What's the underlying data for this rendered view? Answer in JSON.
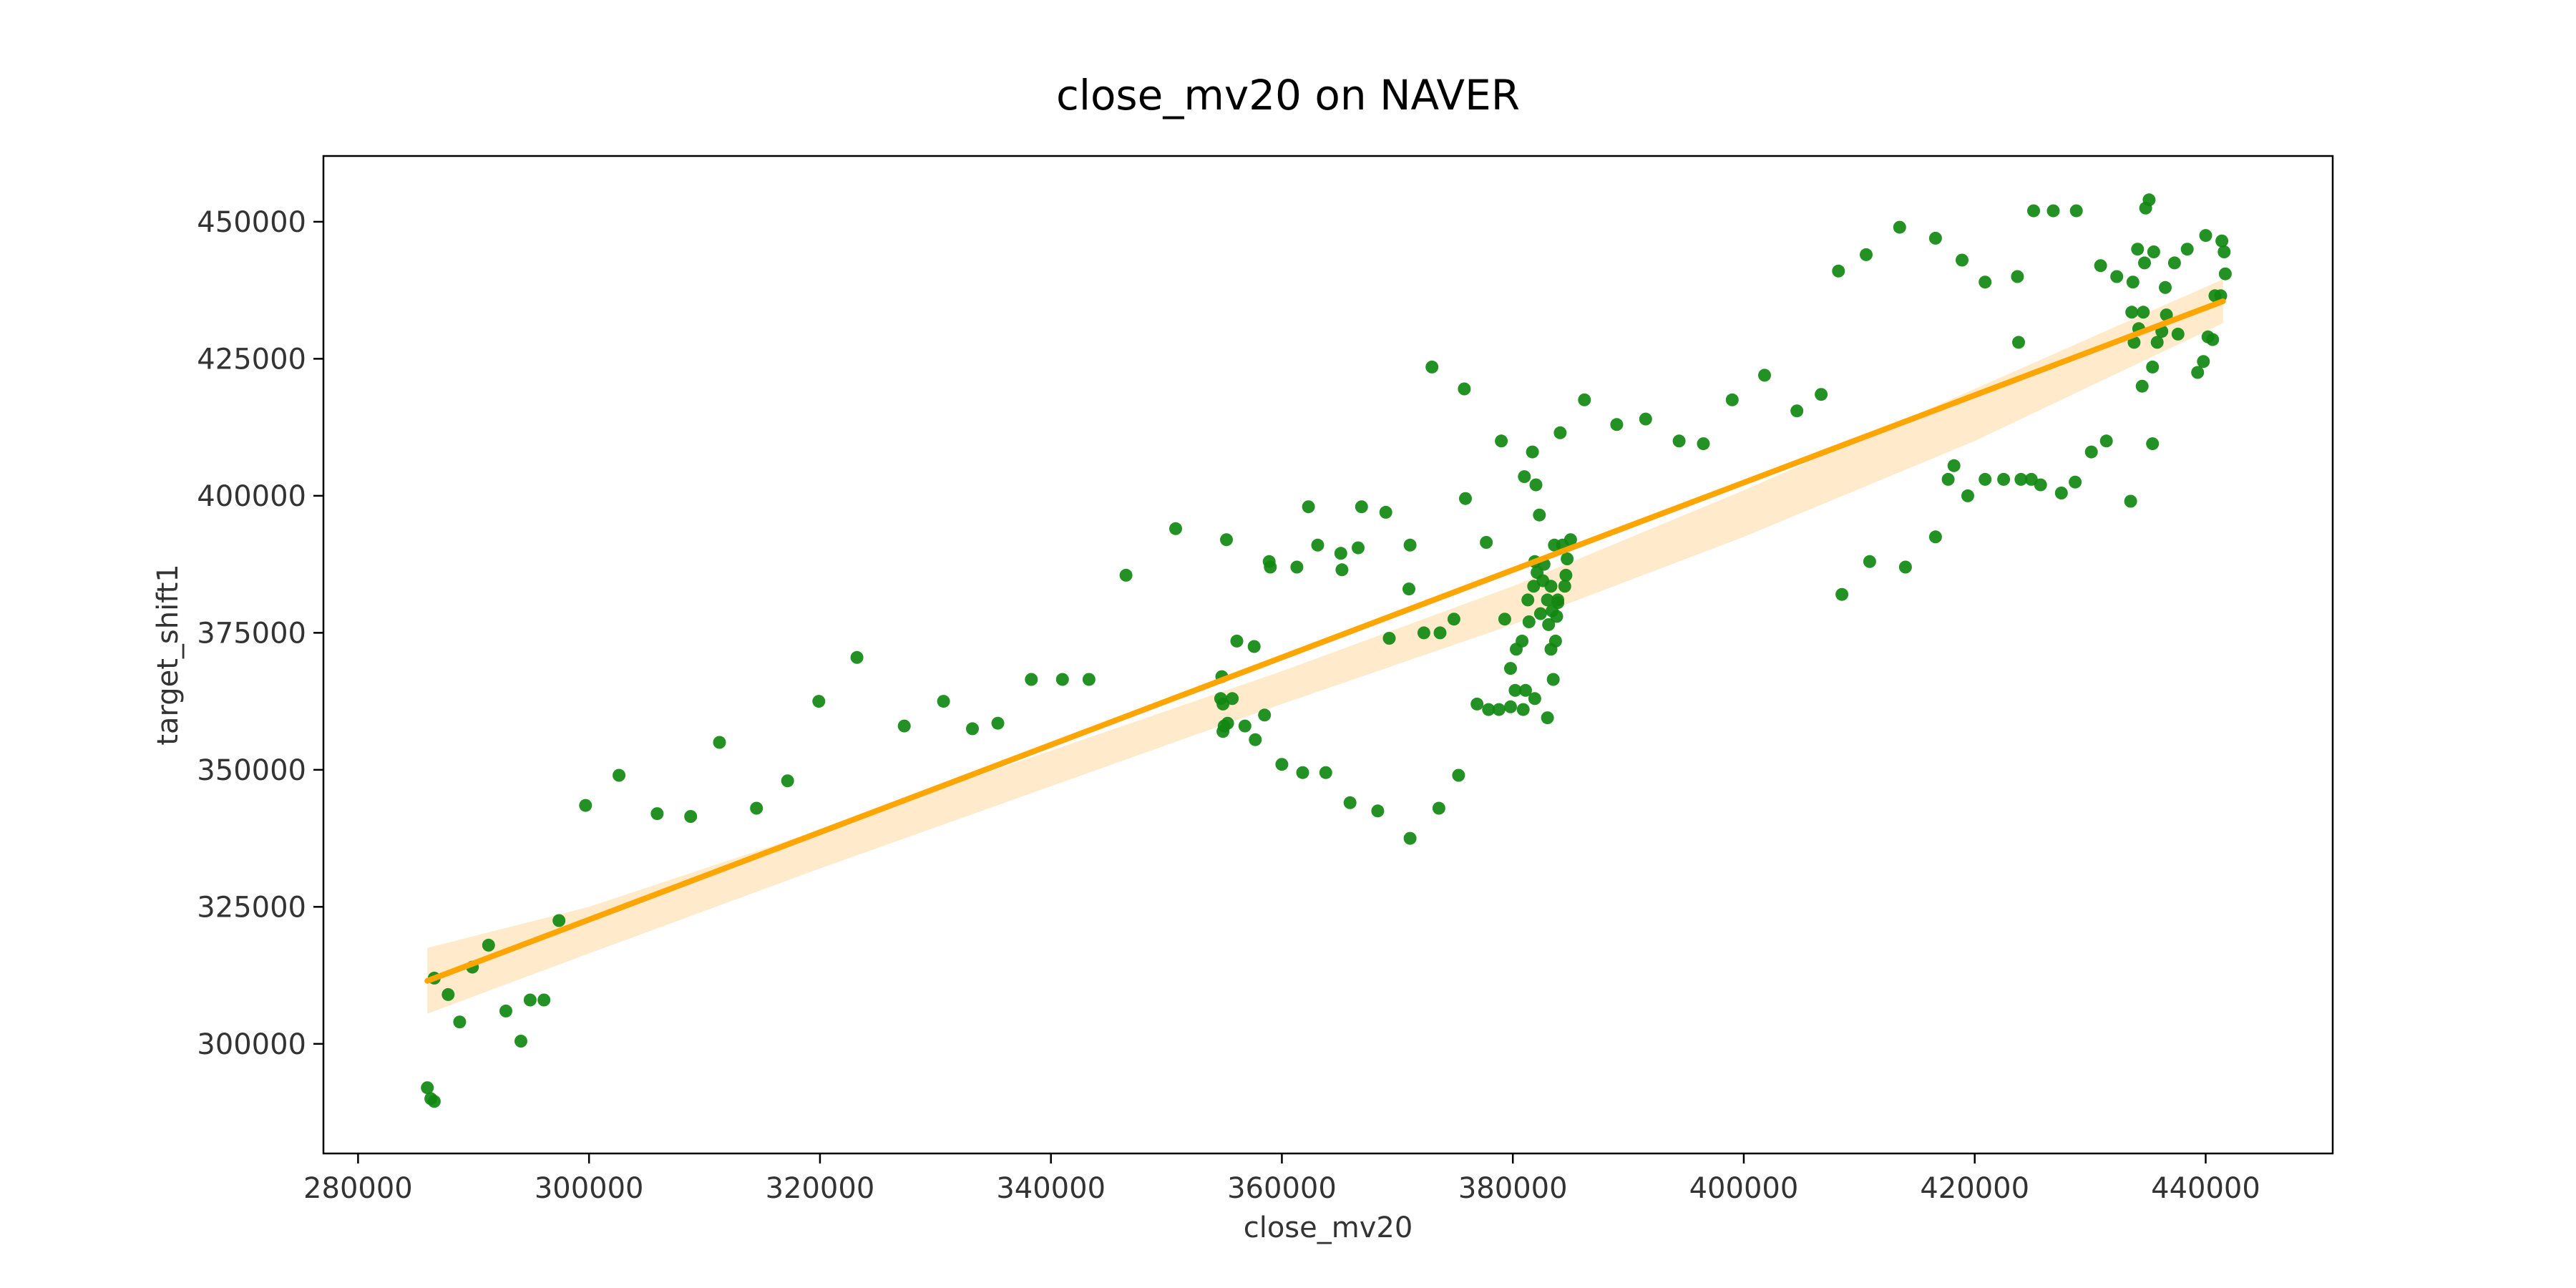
{
  "chart_data": {
    "type": "scatter",
    "title": "close_mv20 on NAVER",
    "xlabel": "close_mv20",
    "ylabel": "target_shift1",
    "xlim": [
      277000,
      451000
    ],
    "ylim": [
      280000,
      462000
    ],
    "x_ticks": [
      280000,
      300000,
      320000,
      340000,
      360000,
      380000,
      400000,
      420000,
      440000
    ],
    "y_ticks": [
      300000,
      325000,
      350000,
      375000,
      400000,
      425000,
      450000
    ],
    "x_tick_labels": [
      "280000",
      "300000",
      "320000",
      "340000",
      "360000",
      "380000",
      "400000",
      "420000",
      "440000"
    ],
    "y_tick_labels": [
      "300000",
      "325000",
      "350000",
      "375000",
      "400000",
      "425000",
      "450000"
    ],
    "grid": false,
    "colors": {
      "points": "#118811",
      "regression_line": "#ffa500",
      "confidence_band": "#ffe7c2"
    },
    "regression": {
      "x": [
        286000,
        441500
      ],
      "y": [
        311500,
        435500
      ]
    },
    "confidence_band": {
      "x": [
        286000,
        300000,
        320000,
        340000,
        360000,
        380000,
        400000,
        420000,
        441500
      ],
      "upper": [
        317500,
        325000,
        339000,
        353500,
        368000,
        383500,
        401000,
        419500,
        439500
      ],
      "lower": [
        305500,
        316500,
        332000,
        347000,
        362000,
        376500,
        392500,
        410000,
        431500
      ]
    },
    "points": [
      [
        286000,
        292000
      ],
      [
        286300,
        290000
      ],
      [
        286600,
        289500
      ],
      [
        286600,
        312000
      ],
      [
        287800,
        309000
      ],
      [
        288800,
        304000
      ],
      [
        289900,
        314000
      ],
      [
        291300,
        318000
      ],
      [
        292800,
        306000
      ],
      [
        294100,
        300500
      ],
      [
        294900,
        308000
      ],
      [
        296100,
        308000
      ],
      [
        297400,
        322500
      ],
      [
        299700,
        343500
      ],
      [
        302600,
        349000
      ],
      [
        305900,
        342000
      ],
      [
        308800,
        341500
      ],
      [
        311300,
        355000
      ],
      [
        314500,
        343000
      ],
      [
        317200,
        348000
      ],
      [
        319900,
        362500
      ],
      [
        323200,
        370500
      ],
      [
        327300,
        358000
      ],
      [
        330700,
        362500
      ],
      [
        333200,
        357500
      ],
      [
        335400,
        358500
      ],
      [
        338300,
        366500
      ],
      [
        341000,
        366500
      ],
      [
        343300,
        366500
      ],
      [
        346500,
        385500
      ],
      [
        350800,
        394000
      ],
      [
        354800,
        367000
      ],
      [
        354700,
        363000
      ],
      [
        354900,
        362000
      ],
      [
        355000,
        358000
      ],
      [
        354900,
        357000
      ],
      [
        355300,
        358500
      ],
      [
        355200,
        392000
      ],
      [
        355700,
        363000
      ],
      [
        356100,
        373500
      ],
      [
        356800,
        358000
      ],
      [
        357600,
        372500
      ],
      [
        357700,
        355500
      ],
      [
        358500,
        360000
      ],
      [
        358900,
        388000
      ],
      [
        359000,
        387000
      ],
      [
        360000,
        351000
      ],
      [
        361300,
        387000
      ],
      [
        361800,
        349500
      ],
      [
        362300,
        398000
      ],
      [
        363100,
        391000
      ],
      [
        363800,
        349500
      ],
      [
        365200,
        386500
      ],
      [
        365100,
        389500
      ],
      [
        365900,
        344000
      ],
      [
        366600,
        390500
      ],
      [
        366900,
        398000
      ],
      [
        368300,
        342500
      ],
      [
        369000,
        397000
      ],
      [
        369300,
        374000
      ],
      [
        371000,
        383000
      ],
      [
        371100,
        391000
      ],
      [
        371100,
        337500
      ],
      [
        372300,
        375000
      ],
      [
        373000,
        423500
      ],
      [
        373600,
        343000
      ],
      [
        373700,
        375000
      ],
      [
        374900,
        377500
      ],
      [
        375300,
        349000
      ],
      [
        375900,
        399500
      ],
      [
        375800,
        419500
      ],
      [
        376900,
        362000
      ],
      [
        377700,
        391500
      ],
      [
        377900,
        361000
      ],
      [
        378800,
        361000
      ],
      [
        379000,
        410000
      ],
      [
        379300,
        377500
      ],
      [
        379800,
        361500
      ],
      [
        379800,
        368500
      ],
      [
        380200,
        364500
      ],
      [
        380300,
        372000
      ],
      [
        380800,
        373500
      ],
      [
        380900,
        361000
      ],
      [
        381100,
        364500
      ],
      [
        381000,
        403500
      ],
      [
        381300,
        381000
      ],
      [
        381400,
        377000
      ],
      [
        381700,
        408000
      ],
      [
        381800,
        383500
      ],
      [
        381900,
        363000
      ],
      [
        381900,
        388000
      ],
      [
        382000,
        402000
      ],
      [
        382100,
        386000
      ],
      [
        382300,
        396500
      ],
      [
        382400,
        378500
      ],
      [
        382600,
        384500
      ],
      [
        382700,
        387500
      ],
      [
        383000,
        381000
      ],
      [
        383000,
        359500
      ],
      [
        383100,
        376500
      ],
      [
        383300,
        372000
      ],
      [
        383300,
        383500
      ],
      [
        383400,
        379000
      ],
      [
        383500,
        366500
      ],
      [
        383600,
        391000
      ],
      [
        383700,
        373500
      ],
      [
        383800,
        378000
      ],
      [
        383900,
        380500
      ],
      [
        383900,
        381000
      ],
      [
        384100,
        411500
      ],
      [
        384300,
        391000
      ],
      [
        384500,
        383500
      ],
      [
        384700,
        388500
      ],
      [
        384600,
        385500
      ],
      [
        385000,
        392000
      ],
      [
        386200,
        417500
      ],
      [
        389000,
        413000
      ],
      [
        391500,
        414000
      ],
      [
        394400,
        410000
      ],
      [
        396500,
        409500
      ],
      [
        399000,
        417500
      ],
      [
        401800,
        422000
      ],
      [
        404600,
        415500
      ],
      [
        406700,
        418500
      ],
      [
        408200,
        441000
      ],
      [
        408500,
        382000
      ],
      [
        410600,
        444000
      ],
      [
        410900,
        388000
      ],
      [
        413500,
        449000
      ],
      [
        414000,
        387000
      ],
      [
        416600,
        447000
      ],
      [
        416600,
        392500
      ],
      [
        417700,
        403000
      ],
      [
        418200,
        405500
      ],
      [
        418900,
        443000
      ],
      [
        419400,
        400000
      ],
      [
        420900,
        439000
      ],
      [
        420900,
        403000
      ],
      [
        422500,
        403000
      ],
      [
        423700,
        440000
      ],
      [
        423800,
        428000
      ],
      [
        424000,
        403000
      ],
      [
        424900,
        403000
      ],
      [
        425100,
        452000
      ],
      [
        425700,
        402000
      ],
      [
        426800,
        452000
      ],
      [
        427500,
        400500
      ],
      [
        428800,
        452000
      ],
      [
        428700,
        402500
      ],
      [
        430100,
        408000
      ],
      [
        430900,
        442000
      ],
      [
        431400,
        410000
      ],
      [
        432300,
        440000
      ],
      [
        433500,
        399000
      ],
      [
        433600,
        433500
      ],
      [
        433700,
        439000
      ],
      [
        433800,
        428000
      ],
      [
        434100,
        445000
      ],
      [
        434200,
        430500
      ],
      [
        434500,
        420000
      ],
      [
        434600,
        433500
      ],
      [
        434700,
        442500
      ],
      [
        434800,
        452500
      ],
      [
        435100,
        454000
      ],
      [
        435400,
        423500
      ],
      [
        435400,
        409500
      ],
      [
        435500,
        444500
      ],
      [
        435800,
        428000
      ],
      [
        436200,
        430000
      ],
      [
        436500,
        438000
      ],
      [
        436600,
        433000
      ],
      [
        437300,
        442500
      ],
      [
        437600,
        429500
      ],
      [
        438400,
        445000
      ],
      [
        439300,
        422500
      ],
      [
        439800,
        424500
      ],
      [
        440000,
        447500
      ],
      [
        440200,
        429000
      ],
      [
        440600,
        428500
      ],
      [
        440800,
        436500
      ],
      [
        441300,
        436500
      ],
      [
        441400,
        446500
      ],
      [
        441600,
        444500
      ],
      [
        441700,
        440500
      ]
    ]
  }
}
